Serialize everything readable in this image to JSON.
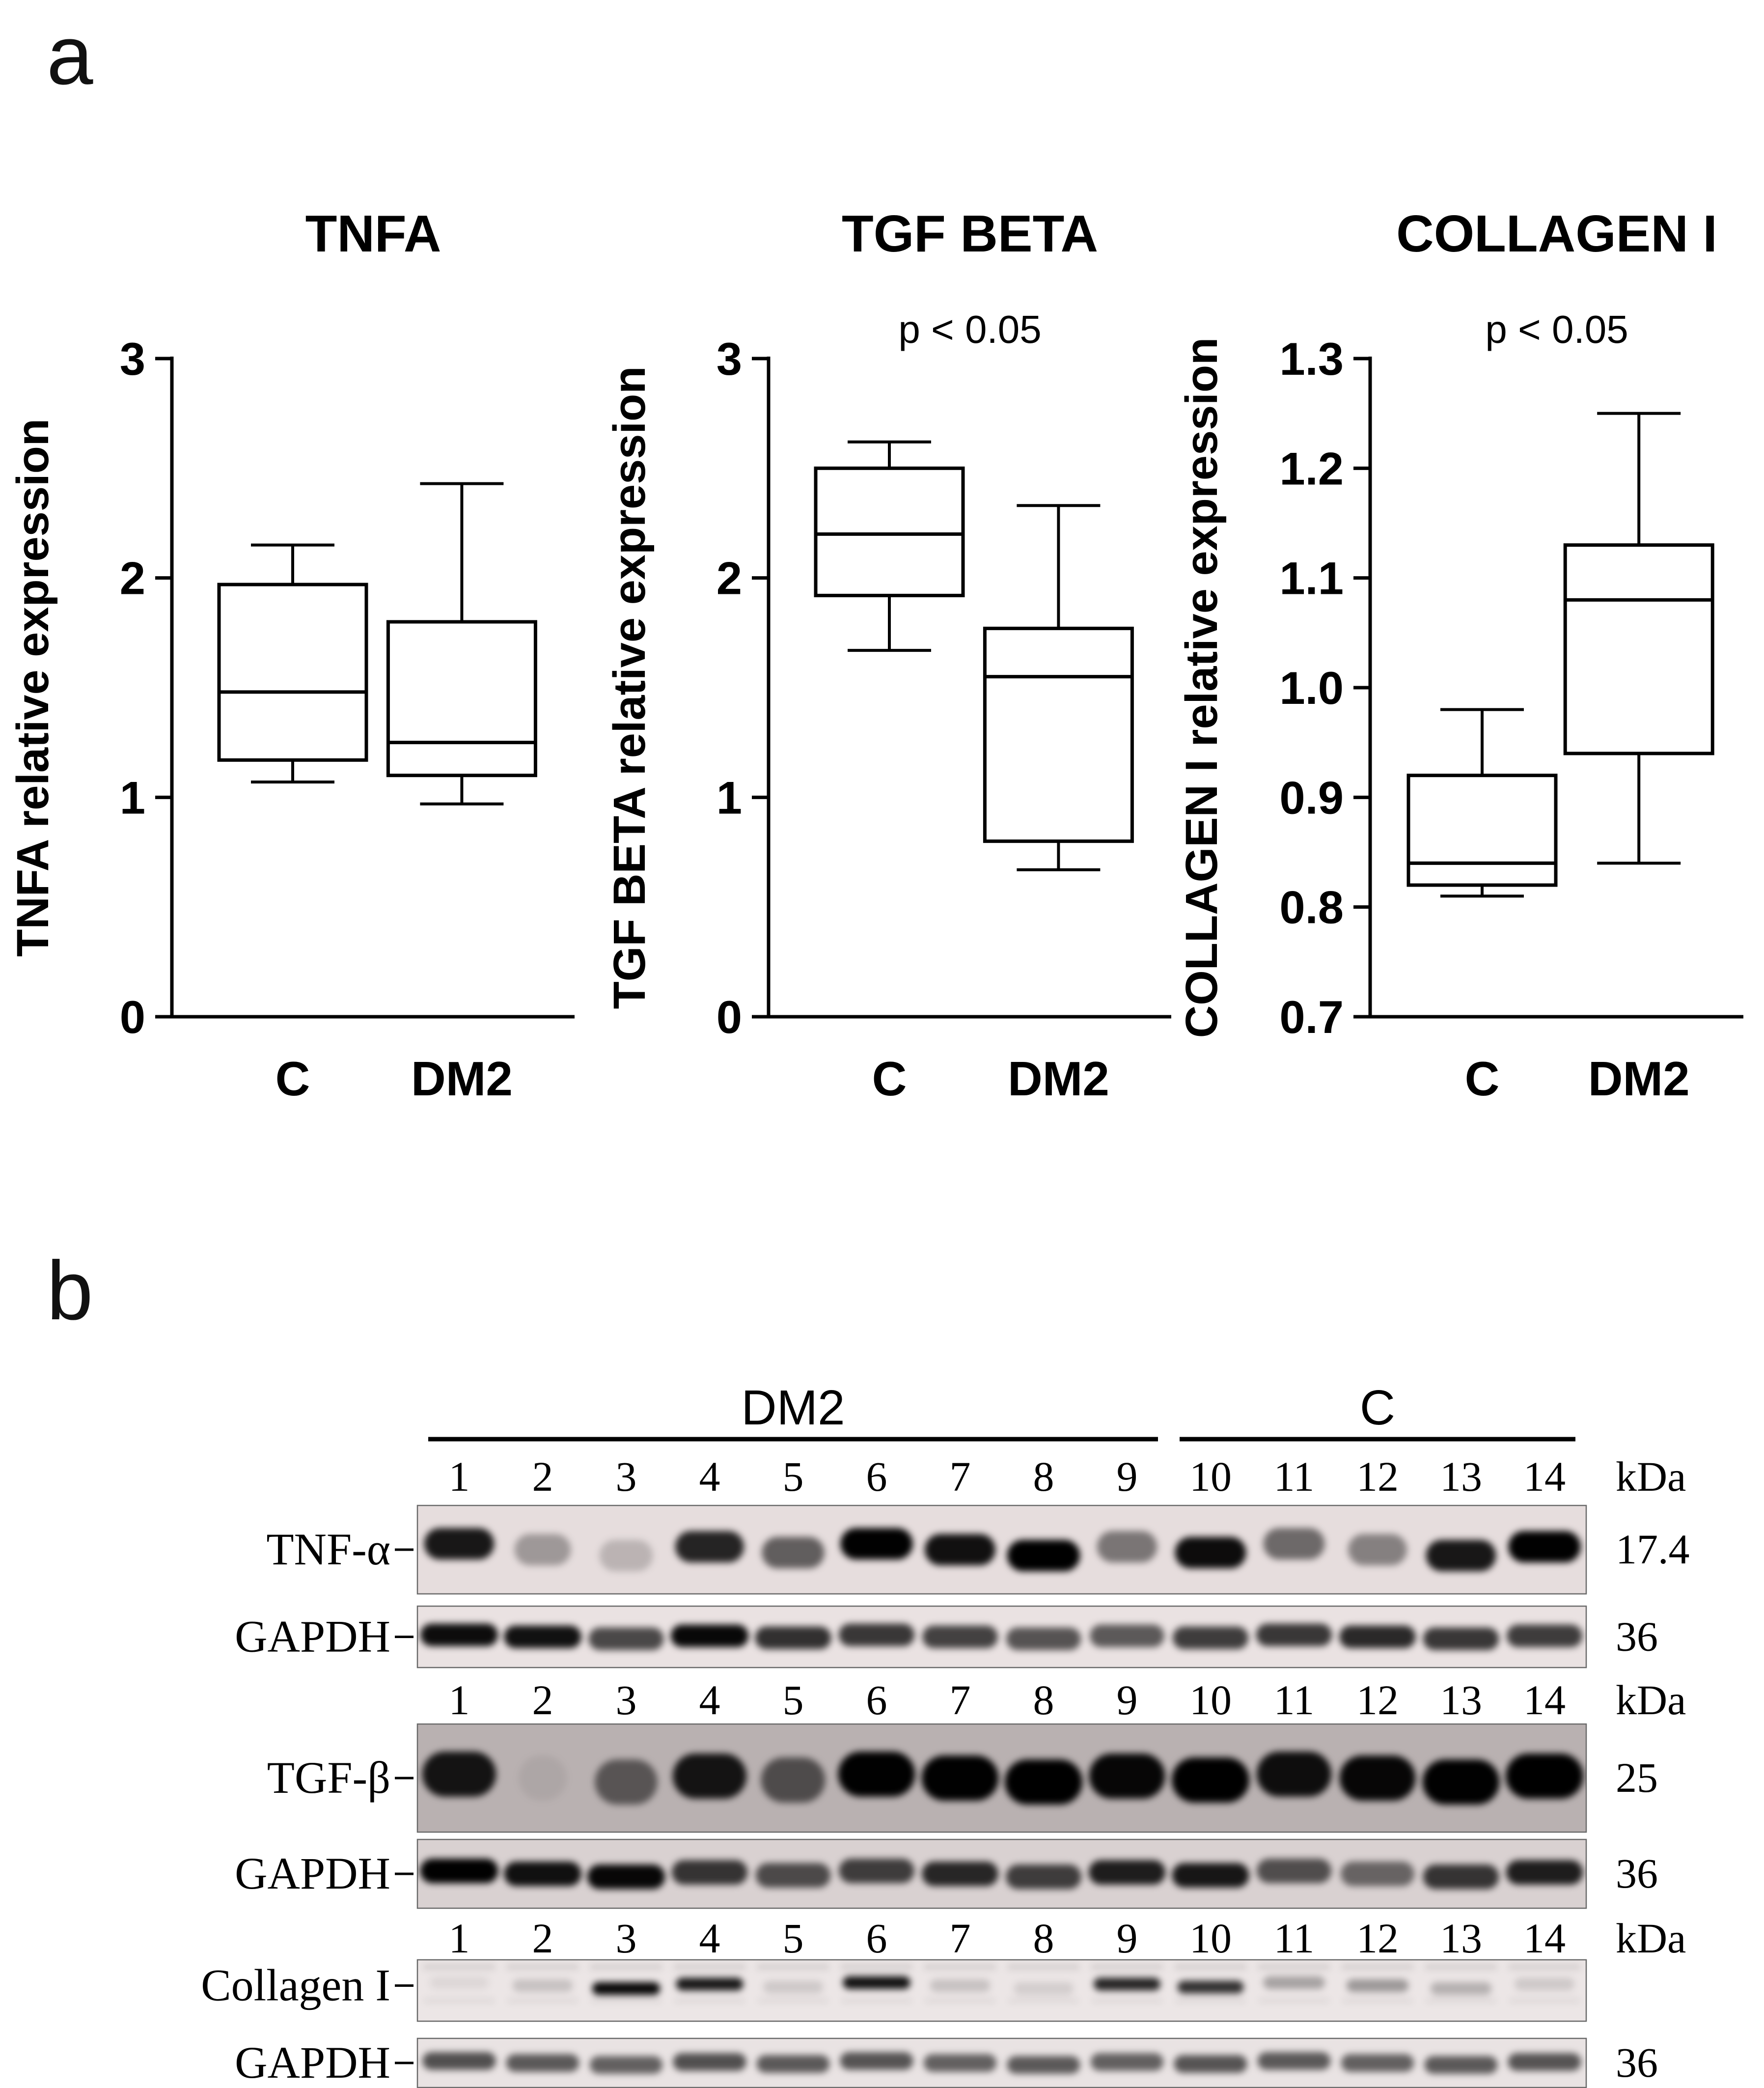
{
  "panel_a": {
    "label": "a"
  },
  "panel_b": {
    "label": "b",
    "group_headers": [
      {
        "label": "DM2",
        "from": 1,
        "to": 9
      },
      {
        "label": "C",
        "from": 10,
        "to": 14
      }
    ],
    "lane_numbers": [
      "1",
      "2",
      "3",
      "4",
      "5",
      "6",
      "7",
      "8",
      "9",
      "10",
      "11",
      "12",
      "13",
      "14"
    ],
    "kda_header": "kDa",
    "blots": [
      {
        "label": "TNF-α",
        "kda": "17.4",
        "bg": "#e6dddd",
        "intensities": [
          0.85,
          0.3,
          0.18,
          0.8,
          0.55,
          0.95,
          0.88,
          0.97,
          0.45,
          0.9,
          0.5,
          0.4,
          0.85,
          0.95
        ]
      },
      {
        "label": "GAPDH",
        "kda": "36",
        "bg": "#eae2e2",
        "intensities": [
          0.9,
          0.88,
          0.65,
          0.92,
          0.75,
          0.72,
          0.68,
          0.6,
          0.58,
          0.7,
          0.72,
          0.78,
          0.72,
          0.7
        ]
      },
      {
        "label": "TGF-β",
        "kda": "25",
        "bg": "#b9b1b1",
        "intensities": [
          0.85,
          0.06,
          0.5,
          0.85,
          0.55,
          0.95,
          0.95,
          0.97,
          0.92,
          0.97,
          0.88,
          0.92,
          0.95,
          0.97
        ]
      },
      {
        "label": "GAPDH",
        "kda": "36",
        "bg": "#d9d1d1",
        "intensities": [
          0.95,
          0.88,
          0.92,
          0.72,
          0.62,
          0.68,
          0.78,
          0.68,
          0.82,
          0.85,
          0.6,
          0.5,
          0.72,
          0.82
        ]
      },
      {
        "label": "Collagen I",
        "kda": "",
        "bg": "#ece6e6",
        "intensities": [
          0.06,
          0.15,
          0.92,
          0.85,
          0.12,
          0.88,
          0.15,
          0.1,
          0.8,
          0.75,
          0.28,
          0.32,
          0.22,
          0.12
        ]
      },
      {
        "label": "GAPDH",
        "kda": "36",
        "bg": "#e9e3e3",
        "intensities": [
          0.62,
          0.58,
          0.55,
          0.62,
          0.58,
          0.6,
          0.55,
          0.58,
          0.55,
          0.6,
          0.58,
          0.55,
          0.58,
          0.6
        ]
      }
    ]
  },
  "chart_data": [
    {
      "type": "box",
      "title": "TNFA",
      "ylabel": "TNFA relative expression",
      "annotation": "",
      "ylim": [
        0,
        3
      ],
      "yticks": [
        0,
        1,
        2,
        3
      ],
      "ytick_labels": [
        "0",
        "1",
        "2",
        "3"
      ],
      "categories": [
        "C",
        "DM2"
      ],
      "series": [
        {
          "name": "C",
          "min": 1.07,
          "q1": 1.17,
          "median": 1.48,
          "q3": 1.97,
          "max": 2.15
        },
        {
          "name": "DM2",
          "min": 0.97,
          "q1": 1.1,
          "median": 1.25,
          "q3": 1.8,
          "max": 2.43
        }
      ]
    },
    {
      "type": "box",
      "title": "TGF BETA",
      "ylabel": "TGF BETA relative expression",
      "annotation": "p < 0.05",
      "ylim": [
        0,
        3
      ],
      "yticks": [
        0,
        1,
        2,
        3
      ],
      "ytick_labels": [
        "0",
        "1",
        "2",
        "3"
      ],
      "categories": [
        "C",
        "DM2"
      ],
      "series": [
        {
          "name": "C",
          "min": 1.67,
          "q1": 1.92,
          "median": 2.2,
          "q3": 2.5,
          "max": 2.62
        },
        {
          "name": "DM2",
          "min": 0.67,
          "q1": 0.8,
          "median": 1.55,
          "q3": 1.77,
          "max": 2.33
        }
      ]
    },
    {
      "type": "box",
      "title": "COLLAGEN I",
      "ylabel": "COLLAGEN I relative expression",
      "annotation": "p < 0.05",
      "ylim": [
        0.7,
        1.3
      ],
      "yticks": [
        0.7,
        0.8,
        0.9,
        1.0,
        1.1,
        1.2,
        1.3
      ],
      "ytick_labels": [
        "0.7",
        "0.8",
        "0.9",
        "1.0",
        "1.1",
        "1.2",
        "1.3"
      ],
      "categories": [
        "C",
        "DM2"
      ],
      "series": [
        {
          "name": "C",
          "min": 0.81,
          "q1": 0.82,
          "median": 0.84,
          "q3": 0.92,
          "max": 0.98
        },
        {
          "name": "DM2",
          "min": 0.84,
          "q1": 0.94,
          "median": 1.08,
          "q3": 1.13,
          "max": 1.25
        }
      ]
    }
  ]
}
